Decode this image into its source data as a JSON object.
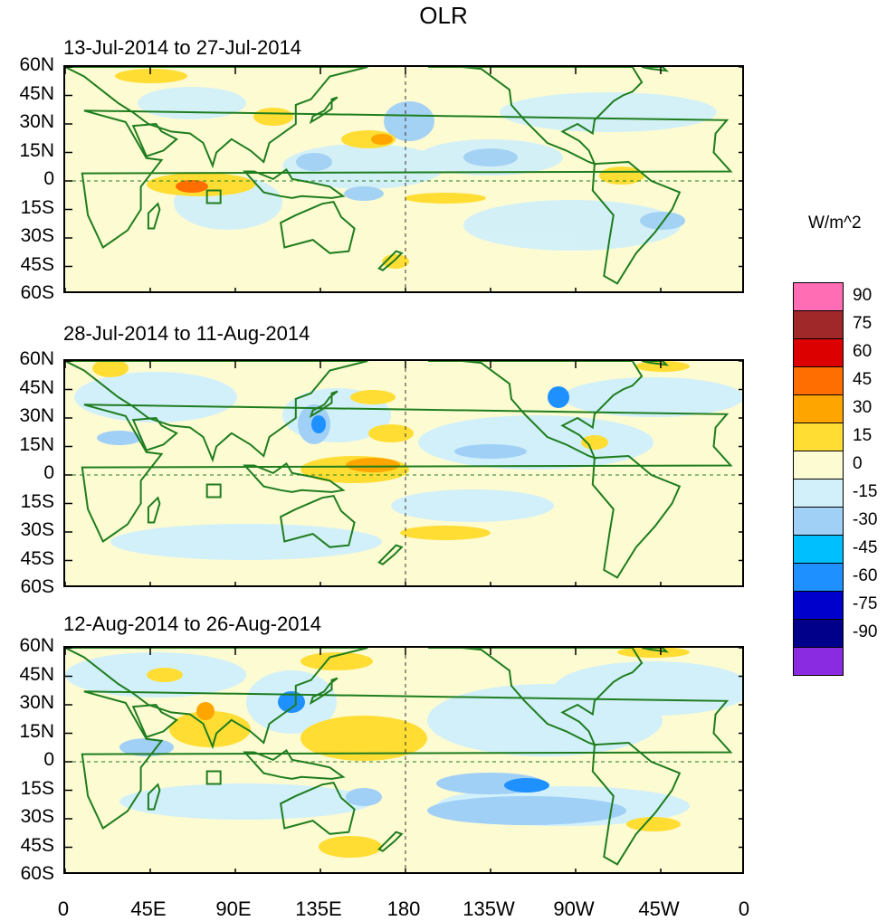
{
  "title": "OLR",
  "panels": [
    {
      "label": "13-Jul-2014 to 27-Jul-2014"
    },
    {
      "label": "28-Jul-2014 to 11-Aug-2014"
    },
    {
      "label": "12-Aug-2014 to 26-Aug-2014"
    }
  ],
  "lat_labels": [
    "60N",
    "45N",
    "30N",
    "15N",
    "0",
    "15S",
    "30S",
    "45S",
    "60S"
  ],
  "lon_labels": [
    "0",
    "45E",
    "90E",
    "135E",
    "180",
    "135W",
    "90W",
    "45W",
    "0"
  ],
  "colorbar": {
    "units": "W/m^2",
    "levels": [
      "90",
      "75",
      "60",
      "45",
      "30",
      "15",
      "0",
      "-15",
      "-30",
      "-45",
      "-60",
      "-75",
      "-90"
    ],
    "colors": [
      "#ff6eb4",
      "#a02828",
      "#dc0000",
      "#ff6e00",
      "#ffa500",
      "#ffdd33",
      "#fdfbd2",
      "#d2f0fa",
      "#a0d0f6",
      "#00bfff",
      "#1e90ff",
      "#0000cd",
      "#00008b",
      "#8a2be2"
    ]
  },
  "colors": {
    "coast": "#1e7d1e",
    "grid": "#1e7d1e"
  }
}
